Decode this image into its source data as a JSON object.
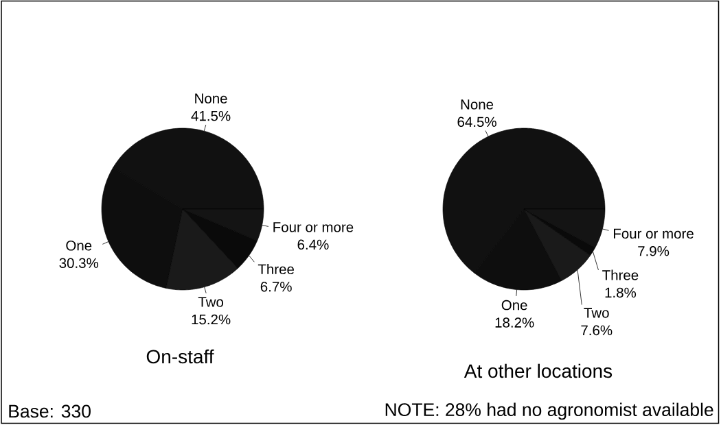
{
  "chart_data": [
    {
      "type": "pie",
      "title": "On-staff",
      "categories": [
        "None",
        "One",
        "Two",
        "Three",
        "Four or more"
      ],
      "values": [
        41.5,
        30.3,
        15.2,
        6.7,
        6.4
      ],
      "value_labels": [
        "41.5%",
        "30.3%",
        "15.2%",
        "6.7%",
        "6.4%"
      ],
      "colors": [
        "#111111",
        "#0e0e0e",
        "#1a1a1a",
        "#0a0a0a",
        "#141414"
      ],
      "annotations": [
        "Base: 330"
      ]
    },
    {
      "type": "pie",
      "title": "At other locations",
      "categories": [
        "None",
        "One",
        "Two",
        "Three",
        "Four or more"
      ],
      "values": [
        64.5,
        18.2,
        7.6,
        1.8,
        7.9
      ],
      "value_labels": [
        "64.5%",
        "18.2%",
        "7.6%",
        "1.8%",
        "7.9%"
      ],
      "colors": [
        "#111111",
        "#0e0e0e",
        "#1a1a1a",
        "#0a0a0a",
        "#141414"
      ],
      "annotations": [
        "NOTE: 28% had no agronomist available"
      ]
    }
  ]
}
